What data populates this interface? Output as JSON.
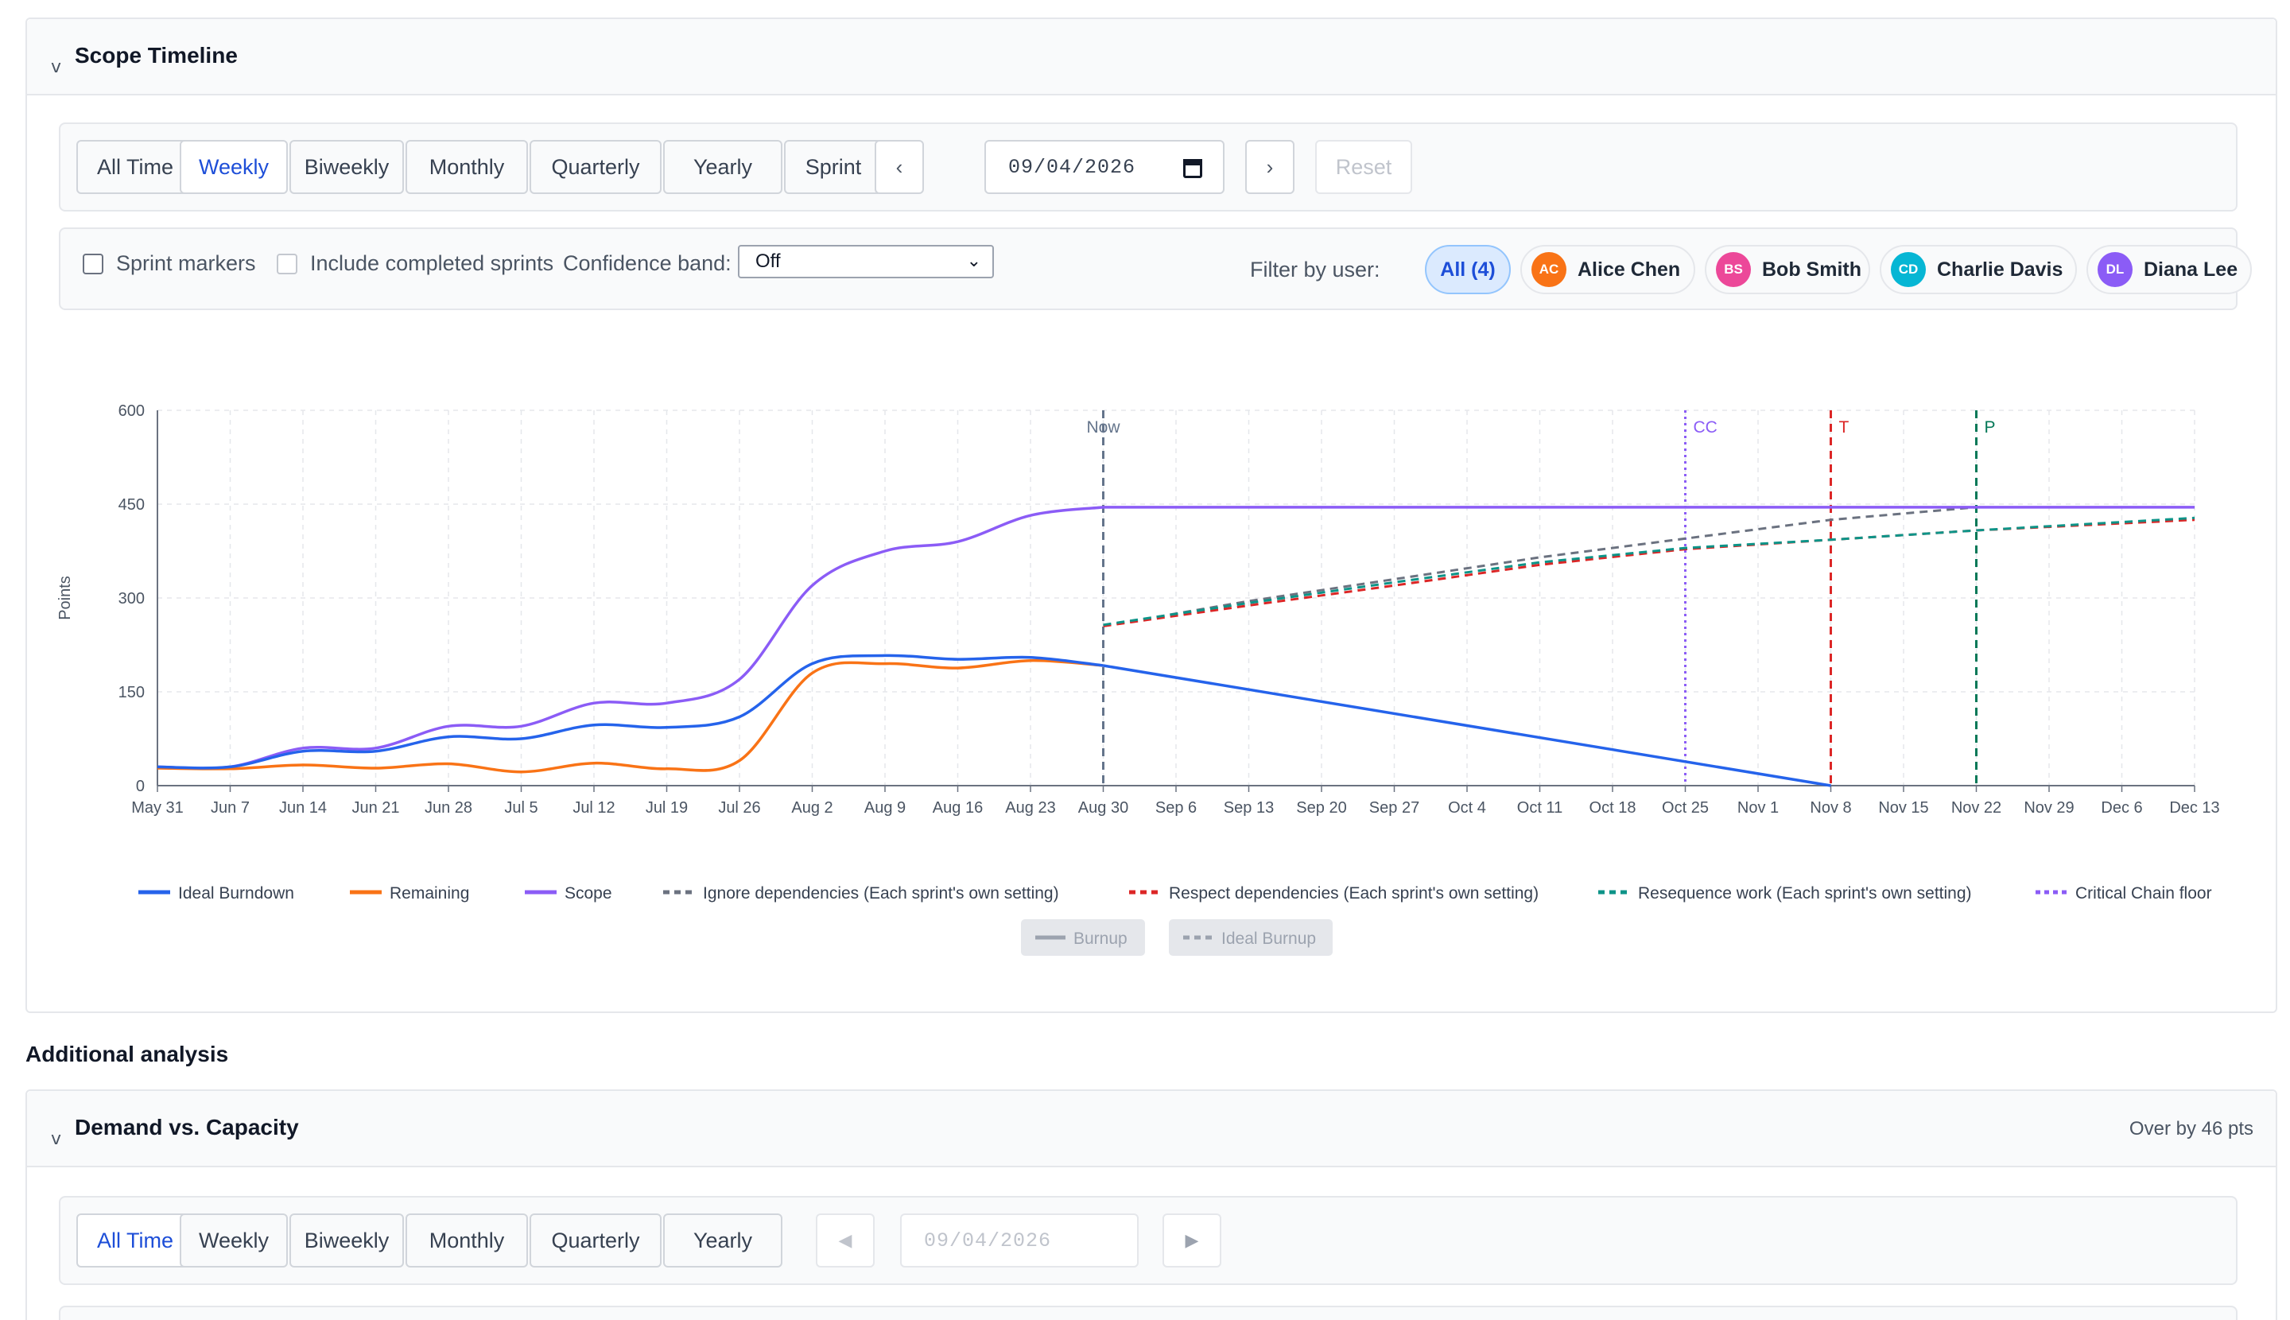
{
  "scope_panel": {
    "title": "Scope Timeline",
    "range_tabs": [
      "All Time",
      "Weekly",
      "Biweekly",
      "Monthly",
      "Quarterly",
      "Yearly",
      "Sprint"
    ],
    "active_tab": "Weekly",
    "prev_label": "‹",
    "next_label": "›",
    "date_value": "09/04/2026",
    "reset_label": "Reset",
    "options": {
      "sprint_markers": "Sprint markers",
      "include_completed": "Include completed sprints",
      "confidence_label": "Confidence band:",
      "confidence_value": "Off"
    },
    "filter": {
      "label": "Filter by user:",
      "all_label": "All (4)",
      "users": [
        {
          "initials": "AC",
          "name": "Alice Chen",
          "color": "#f97316"
        },
        {
          "initials": "BS",
          "name": "Bob Smith",
          "color": "#ec4899"
        },
        {
          "initials": "CD",
          "name": "Charlie Davis",
          "color": "#06b6d4"
        },
        {
          "initials": "DL",
          "name": "Diana Lee",
          "color": "#8b5cf6"
        }
      ]
    }
  },
  "chart_data": {
    "type": "line",
    "ylabel": "Points",
    "ylim": [
      0,
      600
    ],
    "yticks": [
      0,
      150,
      300,
      450,
      600
    ],
    "x": [
      "May 31",
      "Jun 7",
      "Jun 14",
      "Jun 21",
      "Jun 28",
      "Jul 5",
      "Jul 12",
      "Jul 19",
      "Jul 26",
      "Aug 2",
      "Aug 9",
      "Aug 16",
      "Aug 23",
      "Aug 30",
      "Sep 6",
      "Sep 13",
      "Sep 20",
      "Sep 27",
      "Oct 4",
      "Oct 11",
      "Oct 18",
      "Oct 25",
      "Nov 1",
      "Nov 8",
      "Nov 15",
      "Nov 22",
      "Nov 29",
      "Dec 6",
      "Dec 13"
    ],
    "grid": true,
    "markers": [
      {
        "label": "Now",
        "at": "Aug 30",
        "color": "#64748b",
        "style": "dashed"
      },
      {
        "label": "CC",
        "at": "Oct 25",
        "color": "#8b5cf6",
        "style": "dotted"
      },
      {
        "label": "T",
        "at": "Nov 8",
        "color": "#dc2626",
        "style": "dashed"
      },
      {
        "label": "P",
        "at": "Nov 22",
        "color": "#047857",
        "style": "dashed"
      }
    ],
    "series": [
      {
        "name": "Ideal Burndown",
        "color": "#2563eb",
        "style": "solid",
        "points": [
          [
            "May 31",
            30
          ],
          [
            "Jun 7",
            30
          ],
          [
            "Jun 14",
            55
          ],
          [
            "Jun 21",
            55
          ],
          [
            "Jun 28",
            78
          ],
          [
            "Jul 5",
            75
          ],
          [
            "Jul 12",
            97
          ],
          [
            "Jul 19",
            93
          ],
          [
            "Jul 26",
            110
          ],
          [
            "Aug 2",
            195
          ],
          [
            "Aug 9",
            208
          ],
          [
            "Aug 16",
            202
          ],
          [
            "Aug 23",
            205
          ],
          [
            "Aug 30",
            192
          ],
          [
            "Nov 8",
            0
          ]
        ]
      },
      {
        "name": "Remaining",
        "color": "#f97316",
        "style": "solid",
        "points": [
          [
            "May 31",
            28
          ],
          [
            "Jun 7",
            27
          ],
          [
            "Jun 14",
            33
          ],
          [
            "Jun 21",
            28
          ],
          [
            "Jun 28",
            35
          ],
          [
            "Jul 5",
            22
          ],
          [
            "Jul 12",
            36
          ],
          [
            "Jul 19",
            27
          ],
          [
            "Jul 26",
            40
          ],
          [
            "Aug 2",
            180
          ],
          [
            "Aug 9",
            195
          ],
          [
            "Aug 16",
            188
          ],
          [
            "Aug 23",
            200
          ],
          [
            "Aug 30",
            192
          ]
        ]
      },
      {
        "name": "Scope",
        "color": "#8b5cf6",
        "style": "solid",
        "points": [
          [
            "May 31",
            30
          ],
          [
            "Jun 7",
            30
          ],
          [
            "Jun 14",
            60
          ],
          [
            "Jun 21",
            60
          ],
          [
            "Jun 28",
            95
          ],
          [
            "Jul 5",
            95
          ],
          [
            "Jul 12",
            132
          ],
          [
            "Jul 19",
            132
          ],
          [
            "Jul 26",
            170
          ],
          [
            "Aug 2",
            320
          ],
          [
            "Aug 9",
            375
          ],
          [
            "Aug 16",
            390
          ],
          [
            "Aug 23",
            432
          ],
          [
            "Aug 30",
            445
          ],
          [
            "Dec 13",
            445
          ]
        ]
      },
      {
        "name": "Ignore dependencies (Each sprint's own setting)",
        "color": "#6b7280",
        "style": "dashed",
        "points": [
          [
            "Aug 30",
            255
          ],
          [
            "Sep 13",
            295
          ],
          [
            "Sep 27",
            330
          ],
          [
            "Oct 11",
            365
          ],
          [
            "Oct 25",
            395
          ],
          [
            "Nov 8",
            425
          ],
          [
            "Nov 22",
            445
          ]
        ]
      },
      {
        "name": "Respect dependencies (Each sprint's own setting)",
        "color": "#dc2626",
        "style": "dashed",
        "points": [
          [
            "Aug 30",
            255
          ],
          [
            "Sep 13",
            288
          ],
          [
            "Sep 27",
            320
          ],
          [
            "Oct 11",
            353
          ],
          [
            "Oct 25",
            378
          ],
          [
            "Nov 8",
            393
          ],
          [
            "Nov 22",
            408
          ],
          [
            "Dec 13",
            425
          ]
        ]
      },
      {
        "name": "Resequence work (Each sprint's own setting)",
        "color": "#0d9488",
        "style": "dashed",
        "points": [
          [
            "Aug 30",
            257
          ],
          [
            "Sep 13",
            292
          ],
          [
            "Sep 27",
            325
          ],
          [
            "Oct 11",
            357
          ],
          [
            "Oct 25",
            380
          ],
          [
            "Nov 8",
            393
          ],
          [
            "Nov 22",
            408
          ],
          [
            "Dec 13",
            428
          ]
        ]
      },
      {
        "name": "Critical Chain floor",
        "color": "#8b5cf6",
        "style": "dotted",
        "points": []
      }
    ],
    "hidden_series": [
      {
        "name": "Burnup",
        "style": "solid"
      },
      {
        "name": "Ideal Burnup",
        "style": "dashed"
      }
    ]
  },
  "additional_title": "Additional analysis",
  "demand_panel": {
    "title": "Demand vs. Capacity",
    "status": "Over by 46 pts",
    "range_tabs": [
      "All Time",
      "Weekly",
      "Biweekly",
      "Monthly",
      "Quarterly",
      "Yearly"
    ],
    "active_tab": "All Time",
    "prev_label": "◀",
    "next_label": "▶",
    "date_value": "09/04/2026"
  }
}
